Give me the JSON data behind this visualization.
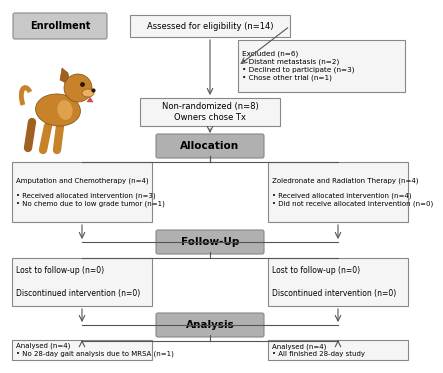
{
  "bg_color": "#ffffff",
  "box_fc": "#f5f5f5",
  "box_ec": "#888888",
  "gray_fc": "#b0b0b0",
  "gray_ec": "#888888",
  "enroll_fc": "#c8c8c8",
  "arrow_color": "#555555",
  "lw": 0.8,
  "enrollment_text": "Enrollment",
  "eligibility_text": "Assessed for eligibility (n=14)",
  "excluded_text": "Excluded (n=6)\n• Distant metastasis (n=2)\n• Declined to participate (n=3)\n• Chose other trial (n=1)",
  "nonrand_text": "Non-randomized (n=8)\nOwners chose Tx",
  "allocation_text": "Allocation",
  "left_alloc_text": "Amputation and Chemotherapy (n=4)\n\n• Received allocated intervention (n=3)\n• No chemo due to low grade tumor (n=1)",
  "right_alloc_text": "Zoledronate and Radiation Therapy (n=4)\n\n• Received allocated intervention (n=4)\n• Did not receive allocated intervention (n=0)",
  "followup_text": "Follow-Up",
  "left_fu_text": "Lost to follow-up (n=0)\n\nDiscontinued intervention (n=0)",
  "right_fu_text": "Lost to follow-up (n=0)\n\nDiscontinued intervention (n=0)",
  "analysis_text": "Analysis",
  "left_an_text": "Analysed (n=4)\n• No 28-day gait analysis due to MRSA (n=1)",
  "right_an_text": "Analysed (n=4)\n• All finished 28-day study"
}
